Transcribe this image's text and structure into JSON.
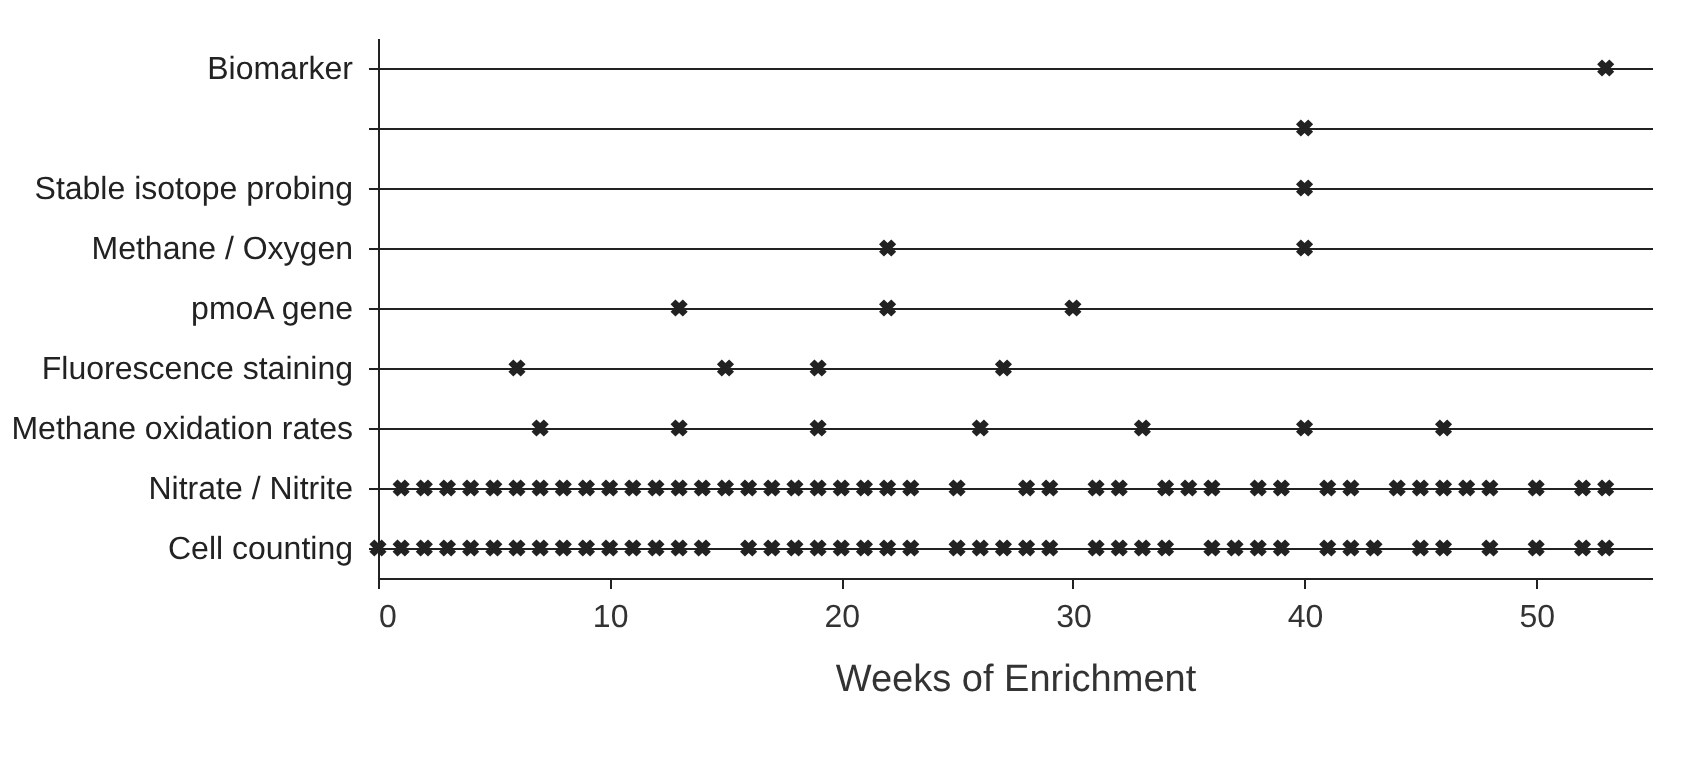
{
  "chart_data": {
    "type": "scatter",
    "orientation": "horizontal",
    "xlabel": "Weeks of Enrichment",
    "color": "#222222",
    "categories": [
      "Biomarker",
      null,
      "Stable isotope probing",
      "Methane / Oxygen",
      "pmoA gene",
      "Fluorescence staining",
      "Methane oxidation rates",
      "Nitrate / Nitrite",
      "Cell counting"
    ],
    "series": [
      {
        "values": [
          53,
          40,
          40,
          22,
          13,
          6,
          7,
          1,
          0
        ]
      },
      {
        "values": [
          null,
          null,
          null,
          40,
          22,
          15,
          13,
          2,
          1
        ]
      },
      {
        "values": [
          null,
          null,
          null,
          null,
          30,
          19,
          19,
          3,
          2
        ]
      },
      {
        "values": [
          null,
          null,
          null,
          null,
          null,
          27,
          26,
          4,
          3
        ]
      },
      {
        "values": [
          null,
          null,
          null,
          null,
          null,
          null,
          33,
          5,
          4
        ]
      },
      {
        "values": [
          null,
          null,
          null,
          null,
          null,
          null,
          40,
          6,
          5
        ]
      },
      {
        "values": [
          null,
          null,
          null,
          null,
          null,
          null,
          46,
          7,
          6
        ]
      },
      {
        "values": [
          null,
          null,
          null,
          null,
          null,
          null,
          null,
          8,
          7
        ]
      },
      {
        "values": [
          null,
          null,
          null,
          null,
          null,
          null,
          null,
          9,
          8
        ]
      },
      {
        "values": [
          null,
          null,
          null,
          null,
          null,
          null,
          null,
          10,
          9
        ]
      },
      {
        "values": [
          null,
          null,
          null,
          null,
          null,
          null,
          null,
          11,
          10
        ]
      },
      {
        "values": [
          null,
          null,
          null,
          null,
          null,
          null,
          null,
          12,
          11
        ]
      },
      {
        "values": [
          null,
          null,
          null,
          null,
          null,
          null,
          null,
          13,
          12
        ]
      },
      {
        "values": [
          null,
          null,
          null,
          null,
          null,
          null,
          null,
          14,
          13
        ]
      },
      {
        "values": [
          null,
          null,
          null,
          null,
          null,
          null,
          null,
          15,
          14
        ]
      },
      {
        "values": [
          null,
          null,
          null,
          null,
          null,
          null,
          null,
          16,
          16
        ]
      },
      {
        "values": [
          null,
          null,
          null,
          null,
          null,
          null,
          null,
          17,
          17
        ]
      },
      {
        "values": [
          null,
          null,
          null,
          null,
          null,
          null,
          null,
          18,
          18
        ]
      },
      {
        "values": [
          null,
          null,
          null,
          null,
          null,
          null,
          null,
          19,
          19
        ]
      },
      {
        "values": [
          null,
          null,
          null,
          null,
          null,
          null,
          null,
          20,
          20
        ]
      },
      {
        "values": [
          null,
          null,
          null,
          null,
          null,
          null,
          null,
          21,
          21
        ]
      },
      {
        "values": [
          null,
          null,
          null,
          null,
          null,
          null,
          null,
          22,
          22
        ]
      },
      {
        "values": [
          null,
          null,
          null,
          null,
          null,
          null,
          null,
          23,
          23
        ]
      },
      {
        "values": [
          null,
          null,
          null,
          null,
          null,
          null,
          null,
          25,
          25
        ]
      },
      {
        "values": [
          null,
          null,
          null,
          null,
          null,
          null,
          null,
          28,
          26
        ]
      },
      {
        "values": [
          null,
          null,
          null,
          null,
          null,
          null,
          null,
          29,
          27
        ]
      },
      {
        "values": [
          null,
          null,
          null,
          null,
          null,
          null,
          null,
          31,
          28
        ]
      },
      {
        "values": [
          null,
          null,
          null,
          null,
          null,
          null,
          null,
          32,
          29
        ]
      },
      {
        "values": [
          null,
          null,
          null,
          null,
          null,
          null,
          null,
          34,
          31
        ]
      },
      {
        "values": [
          null,
          null,
          null,
          null,
          null,
          null,
          null,
          35,
          32
        ]
      },
      {
        "values": [
          null,
          null,
          null,
          null,
          null,
          null,
          null,
          36,
          33
        ]
      },
      {
        "values": [
          null,
          null,
          null,
          null,
          null,
          null,
          null,
          38,
          34
        ]
      },
      {
        "values": [
          null,
          null,
          null,
          null,
          null,
          null,
          null,
          39,
          36
        ]
      },
      {
        "values": [
          null,
          null,
          null,
          null,
          null,
          null,
          null,
          41,
          37
        ]
      },
      {
        "values": [
          null,
          null,
          null,
          null,
          null,
          null,
          null,
          42,
          38
        ]
      },
      {
        "values": [
          null,
          null,
          null,
          null,
          null,
          null,
          null,
          44,
          39
        ]
      },
      {
        "values": [
          null,
          null,
          null,
          null,
          null,
          null,
          null,
          45,
          41
        ]
      },
      {
        "values": [
          null,
          null,
          null,
          null,
          null,
          null,
          null,
          46,
          42
        ]
      },
      {
        "values": [
          null,
          null,
          null,
          null,
          null,
          null,
          null,
          47,
          43
        ]
      },
      {
        "values": [
          null,
          null,
          null,
          null,
          null,
          null,
          null,
          48,
          45
        ]
      },
      {
        "values": [
          null,
          null,
          null,
          null,
          null,
          null,
          null,
          50,
          46
        ]
      },
      {
        "values": [
          null,
          null,
          null,
          null,
          null,
          null,
          null,
          52,
          48
        ]
      },
      {
        "values": [
          null,
          null,
          null,
          null,
          null,
          null,
          null,
          53,
          50
        ]
      },
      {
        "values": [
          null,
          null,
          null,
          null,
          null,
          null,
          null,
          null,
          52
        ]
      },
      {
        "values": [
          null,
          null,
          null,
          null,
          null,
          null,
          null,
          null,
          53
        ]
      }
    ],
    "xlim": [
      0,
      55
    ],
    "xticks": [
      0,
      10,
      20,
      30,
      40,
      50
    ],
    "grid": "y",
    "marker": "cross"
  }
}
